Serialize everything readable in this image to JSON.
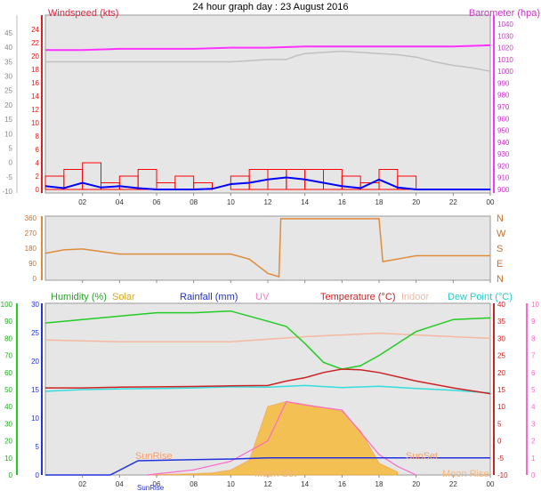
{
  "title": "24 hour graph day : 23 August 2016",
  "colors": {
    "wind": "#ff0000",
    "windAvg": "#0000ff",
    "gust_area": "#c0c0c0",
    "baro": "#ff33ff",
    "dir": "#e08b3a",
    "hum": "#22cc22",
    "solar": "#f5b83a",
    "rain": "#2233dd",
    "uv": "#ff66cc",
    "temp": "#cc2222",
    "indoor": "#f5b8a0",
    "dew": "#33dddd",
    "bg": "#e6e6e6"
  },
  "xticks": [
    "02",
    "04",
    "06",
    "08",
    "10",
    "12",
    "14",
    "16",
    "18",
    "20",
    "22",
    "00"
  ],
  "panel1": {
    "left_label": "Windspeed (kts)",
    "right_label": "Barometer (hpa)",
    "left_outer_ticks": [
      "45",
      "40",
      "35",
      "30",
      "25",
      "20",
      "15",
      "10",
      "5",
      "0",
      "-5",
      "-10"
    ],
    "left_inner_ticks": [
      "24",
      "22",
      "20",
      "18",
      "16",
      "14",
      "12",
      "10",
      "8",
      "6",
      "4",
      "2",
      "0"
    ],
    "right_ticks": [
      "1040",
      "1030",
      "1020",
      "1010",
      "1000",
      "990",
      "980",
      "970",
      "960",
      "950",
      "940",
      "930",
      "920",
      "910",
      "900"
    ]
  },
  "panel2": {
    "left_ticks": [
      "360",
      "270",
      "180",
      "90",
      "0"
    ],
    "right_ticks": [
      "N",
      "W",
      "S",
      "E",
      "N"
    ]
  },
  "panel3": {
    "labels": {
      "humidity": "Humidity (%)",
      "solar": "Solar",
      "rainfall": "Rainfall (mm)",
      "uv": "UV",
      "temperature": "Temperature (°C)",
      "indoor": "Indoor",
      "dew": "Dew Point (°C)"
    },
    "hum_ticks": [
      "100",
      "90",
      "80",
      "70",
      "60",
      "50",
      "40",
      "30",
      "20",
      "10",
      "0"
    ],
    "rain_ticks": [
      "30",
      "25",
      "20",
      "15",
      "10",
      "5",
      "0"
    ],
    "temp_ticks": [
      "40",
      "35",
      "30",
      "25",
      "20",
      "15",
      "10",
      "5",
      "0",
      "-5",
      "-10"
    ],
    "uv_ticks": [
      "10",
      "9",
      "8",
      "7",
      "6",
      "5",
      "4",
      "3",
      "2",
      "1",
      "0"
    ],
    "annotations": {
      "sunrise": "SunRise",
      "sunset": "SunSet",
      "moonset": "Moon Set",
      "moonrise": "Moon Rise",
      "sunrise_bottom": "SunRise"
    }
  },
  "chart_data": [
    {
      "type": "line",
      "title": "24 hour graph day : 23 August 2016",
      "x_unit": "hour",
      "series": [
        {
          "name": "Barometer (hpa)",
          "x": [
            0,
            2,
            4,
            6,
            8,
            10,
            12,
            14,
            16,
            18,
            20,
            22,
            24
          ],
          "values": [
            1018,
            1018,
            1019,
            1019,
            1019,
            1020,
            1020,
            1021,
            1021,
            1021,
            1021,
            1021,
            1022
          ]
        },
        {
          "name": "Windspeed (kts)",
          "x": [
            0,
            1,
            2,
            3,
            4,
            5,
            6,
            7,
            8,
            9,
            10,
            11,
            12,
            13,
            14,
            15,
            16,
            17,
            18,
            19,
            20,
            22,
            24
          ],
          "values": [
            2,
            3,
            4,
            1,
            2,
            3,
            1,
            2,
            1,
            0,
            2,
            3,
            3,
            3,
            3,
            3,
            2,
            1,
            3,
            2,
            0,
            0,
            0
          ]
        }
      ],
      "ylim_left": [
        0,
        24
      ],
      "ylim_right": [
        900,
        1040
      ]
    },
    {
      "type": "line",
      "series": [
        {
          "name": "Wind direction",
          "x": [
            0,
            1,
            2,
            3,
            4,
            6,
            8,
            10,
            11,
            12,
            12.6,
            12.7,
            18,
            18.2,
            20,
            24
          ],
          "values": [
            150,
            170,
            175,
            160,
            145,
            145,
            145,
            145,
            115,
            30,
            10,
            355,
            355,
            100,
            135,
            135
          ]
        }
      ],
      "ylim": [
        0,
        360
      ]
    },
    {
      "type": "line",
      "series": [
        {
          "name": "Humidity (%)",
          "x": [
            0,
            2,
            4,
            6,
            8,
            10,
            12,
            13,
            14,
            15,
            16,
            17,
            18,
            19,
            20,
            22,
            24
          ],
          "values": [
            89,
            91,
            93,
            95,
            95,
            96,
            90,
            87,
            77,
            66,
            62,
            64,
            70,
            77,
            84,
            91,
            92
          ]
        },
        {
          "name": "Temperature (°C)",
          "x": [
            0,
            2,
            4,
            6,
            8,
            10,
            12,
            13,
            14,
            15,
            16,
            17,
            18,
            20,
            22,
            24
          ],
          "values": [
            15.5,
            15.5,
            15.7,
            15.8,
            15.9,
            16.1,
            16.2,
            17.5,
            18.5,
            20,
            21,
            20.8,
            20,
            17.5,
            15.5,
            13.8
          ]
        },
        {
          "name": "Dew Point (°C)",
          "x": [
            0,
            2,
            4,
            6,
            8,
            10,
            12,
            14,
            16,
            18,
            20,
            22,
            24
          ],
          "values": [
            14.5,
            15,
            15.2,
            15.3,
            15.5,
            15.8,
            15.7,
            16.2,
            15.6,
            16,
            15.3,
            14.8,
            14
          ]
        },
        {
          "name": "Indoor",
          "x": [
            0,
            4,
            8,
            10,
            14,
            18,
            20,
            24
          ],
          "values": [
            29.5,
            29,
            29,
            29,
            30.5,
            31.5,
            31,
            30
          ]
        },
        {
          "name": "Rainfall (mm)",
          "x": [
            0,
            3.5,
            4.7,
            5,
            8,
            10,
            12,
            14,
            16,
            18,
            20,
            24
          ],
          "values": [
            0,
            0,
            2,
            2.5,
            2.7,
            2.8,
            3,
            3,
            3,
            3,
            3,
            3
          ]
        },
        {
          "name": "Solar",
          "x": [
            5.5,
            7,
            8,
            9,
            10,
            11,
            12,
            13,
            14,
            15,
            16,
            17,
            18,
            19
          ],
          "values": [
            2,
            6,
            12,
            20,
            50,
            150,
            700,
            750,
            720,
            690,
            650,
            450,
            120,
            30
          ]
        },
        {
          "name": "UV",
          "x": [
            5.5,
            8,
            10,
            12,
            13,
            14,
            16,
            17,
            18,
            19,
            20
          ],
          "values": [
            0,
            0.3,
            0.8,
            2,
            4.3,
            4.1,
            3.8,
            2.5,
            1.2,
            0.5,
            0
          ]
        }
      ],
      "ylim_humidity": [
        0,
        100
      ],
      "ylim_temperature": [
        -10,
        40
      ],
      "ylim_rain": [
        0,
        30
      ],
      "ylim_uv": [
        0,
        10
      ]
    }
  ]
}
